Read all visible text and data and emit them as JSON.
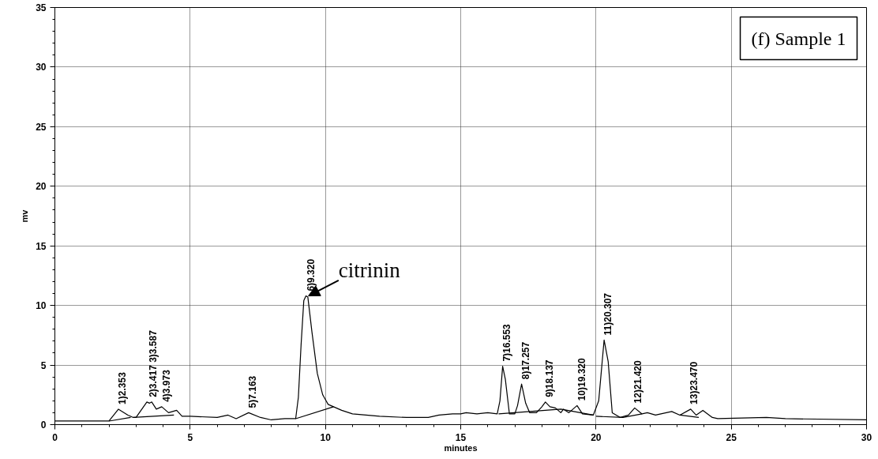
{
  "chart_data": {
    "type": "line",
    "xlabel": "minutes",
    "ylabel": "mv",
    "xlim": [
      0,
      30
    ],
    "ylim": [
      0,
      35
    ],
    "xticks": [
      0,
      5,
      10,
      15,
      20,
      25,
      30
    ],
    "yticks": [
      0,
      5,
      10,
      15,
      20,
      25,
      30,
      35
    ],
    "grid": true,
    "marker": "none",
    "line_style": "solid",
    "series": [
      {
        "color": "#000000",
        "x": [
          0,
          1,
          2,
          2.35,
          2.7,
          2.9,
          3.0,
          3.4,
          3.5,
          3.58,
          3.75,
          3.95,
          4.2,
          4.5,
          4.7,
          5,
          6,
          6.4,
          6.7,
          7.16,
          7.6,
          8,
          8.5,
          8.9,
          9.0,
          9.1,
          9.2,
          9.28,
          9.35,
          9.5,
          9.7,
          9.9,
          10.1,
          10.3,
          10.6,
          11,
          12,
          13,
          13.8,
          14.2,
          14.7,
          15,
          15.2,
          15.6,
          16,
          16.35,
          16.45,
          16.55,
          16.65,
          16.8,
          17,
          17.1,
          17.25,
          17.4,
          17.55,
          17.8,
          18,
          18.13,
          18.3,
          18.5,
          18.7,
          18.8,
          19,
          19.3,
          19.5,
          19.9,
          20.1,
          20.3,
          20.45,
          20.6,
          20.9,
          21.2,
          21.43,
          21.7,
          21.9,
          22.2,
          22.8,
          23.1,
          23.5,
          23.7,
          23.95,
          24.3,
          24.5,
          26.3,
          27,
          30
        ],
        "values": [
          0.3,
          0.3,
          0.3,
          1.3,
          0.8,
          0.6,
          0.6,
          1.9,
          1.8,
          1.9,
          1.3,
          1.5,
          1.0,
          1.2,
          0.7,
          0.7,
          0.6,
          0.8,
          0.5,
          1.0,
          0.6,
          0.4,
          0.5,
          0.5,
          2.3,
          6.7,
          10.4,
          10.8,
          10.7,
          7.8,
          4.3,
          2.5,
          1.7,
          1.5,
          1.2,
          0.9,
          0.7,
          0.6,
          0.6,
          0.8,
          0.9,
          0.9,
          1.0,
          0.9,
          1.0,
          0.9,
          2.0,
          4.9,
          3.8,
          0.9,
          0.9,
          1.6,
          3.4,
          1.8,
          1.0,
          1.0,
          1.5,
          1.9,
          1.5,
          1.4,
          1.0,
          1.3,
          1.0,
          1.6,
          0.9,
          0.8,
          2.0,
          7.1,
          5.3,
          1.0,
          0.6,
          0.8,
          1.4,
          0.9,
          1.0,
          0.8,
          1.1,
          0.8,
          1.3,
          0.8,
          1.2,
          0.6,
          0.5,
          0.6,
          0.5,
          0.4
        ]
      },
      {
        "color": "#000000",
        "x": [
          2.0,
          2.8
        ],
        "values": [
          0.3,
          0.6
        ]
      },
      {
        "color": "#000000",
        "x": [
          2.9,
          4.4
        ],
        "values": [
          0.6,
          0.8
        ]
      },
      {
        "color": "#000000",
        "x": [
          8.9,
          10.3
        ],
        "values": [
          0.5,
          1.5
        ]
      },
      {
        "color": "#000000",
        "x": [
          16.4,
          18.7,
          19.9
        ],
        "values": [
          0.9,
          1.3,
          0.8
        ]
      },
      {
        "color": "#000000",
        "x": [
          20.0,
          21.0,
          21.7
        ],
        "values": [
          0.7,
          0.6,
          0.9
        ]
      },
      {
        "color": "#000000",
        "x": [
          23.1,
          23.8
        ],
        "values": [
          0.8,
          0.6
        ]
      }
    ],
    "annotations": [
      {
        "text": "citrinin",
        "x": 9.32,
        "y": 10.8
      },
      {
        "text": "1)2.353",
        "x": 2.353,
        "y": 1.3
      },
      {
        "text": "2)3.417 3)3.587",
        "x": 3.5,
        "y": 1.9
      },
      {
        "text": "4)3.973",
        "x": 3.973,
        "y": 1.5
      },
      {
        "text": "5)7.163",
        "x": 7.163,
        "y": 1.0
      },
      {
        "text": "6)9.320",
        "x": 9.32,
        "y": 10.8
      },
      {
        "text": "7)16.553",
        "x": 16.553,
        "y": 4.9
      },
      {
        "text": "8)17.257",
        "x": 17.257,
        "y": 3.4
      },
      {
        "text": "9)18.137",
        "x": 18.137,
        "y": 1.9
      },
      {
        "text": "10)19.320",
        "x": 19.32,
        "y": 1.6
      },
      {
        "text": "11)20.307",
        "x": 20.307,
        "y": 7.1
      },
      {
        "text": "12)21.420",
        "x": 21.42,
        "y": 1.4
      },
      {
        "text": "13)23.470",
        "x": 23.47,
        "y": 1.3
      },
      "(f) Sample 1"
    ]
  }
}
